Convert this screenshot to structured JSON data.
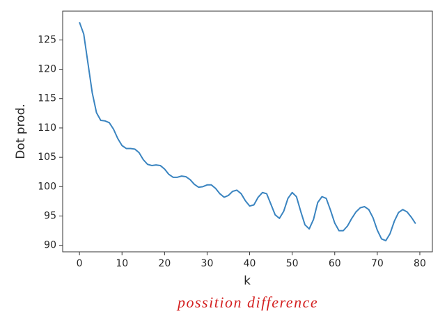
{
  "chart_data": {
    "type": "line",
    "xlabel": "k",
    "ylabel": "Dot prod.",
    "annotation": "possition difference",
    "color": "#3a84c0",
    "x": [
      0,
      1,
      2,
      3,
      4,
      5,
      6,
      7,
      8,
      9,
      10,
      11,
      12,
      13,
      14,
      15,
      16,
      17,
      18,
      19,
      20,
      21,
      22,
      23,
      24,
      25,
      26,
      27,
      28,
      29,
      30,
      31,
      32,
      33,
      34,
      35,
      36,
      37,
      38,
      39,
      40,
      41,
      42,
      43,
      44,
      45,
      46,
      47,
      48,
      49,
      50,
      51,
      52,
      53,
      54,
      55,
      56,
      57,
      58,
      59,
      60,
      61,
      62,
      63,
      64,
      65,
      66,
      67,
      68,
      69,
      70,
      71,
      72,
      73,
      74,
      75,
      76,
      77,
      78,
      79
    ],
    "values": [
      128,
      126,
      121,
      116,
      112.6,
      111.3,
      111.2,
      110.9,
      109.8,
      108.2,
      107,
      106.5,
      106.5,
      106.4,
      105.8,
      104.6,
      103.8,
      103.6,
      103.7,
      103.6,
      103,
      102.1,
      101.6,
      101.6,
      101.8,
      101.7,
      101.2,
      100.4,
      99.9,
      100,
      100.3,
      100.3,
      99.7,
      98.8,
      98.2,
      98.5,
      99.2,
      99.4,
      98.8,
      97.6,
      96.7,
      96.9,
      98.2,
      99,
      98.8,
      97,
      95.2,
      94.6,
      95.8,
      98,
      99,
      98.3,
      95.8,
      93.5,
      92.8,
      94.4,
      97.3,
      98.3,
      98,
      96,
      93.8,
      92.5,
      92.5,
      93.3,
      94.6,
      95.7,
      96.4,
      96.6,
      96.1,
      94.7,
      92.6,
      91.1,
      90.8,
      92,
      94.1,
      95.6,
      96.1,
      95.7,
      94.8,
      93.7
    ],
    "xlim": [
      -3.95,
      82.95
    ],
    "ylim": [
      88.9,
      129.9
    ],
    "xticks": [
      0,
      10,
      20,
      30,
      40,
      50,
      60,
      70,
      80
    ],
    "yticks": [
      90,
      95,
      100,
      105,
      110,
      115,
      120,
      125
    ]
  }
}
